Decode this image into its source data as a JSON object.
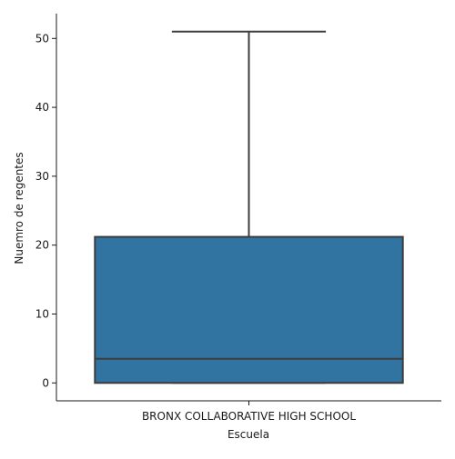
{
  "chart_data": {
    "type": "box",
    "title": "",
    "xlabel": "Escuela",
    "ylabel": "Nuemro de regentes",
    "categories": [
      "BRONX COLLABORATIVE HIGH SCHOOL"
    ],
    "boxes": [
      {
        "category": "BRONX COLLABORATIVE HIGH SCHOOL",
        "whisker_low": 0,
        "q1": 0,
        "median": 3.5,
        "q3": 21.2,
        "whisker_high": 51
      }
    ],
    "y_ticks": [
      0,
      10,
      20,
      30,
      40,
      50
    ],
    "ylim": [
      -2.6,
      53.6
    ],
    "grid": false,
    "legend": "none",
    "colors": {
      "box_fill": "#3274a1",
      "line": "#3d3d3d",
      "axis": "#1a1a1a"
    }
  }
}
